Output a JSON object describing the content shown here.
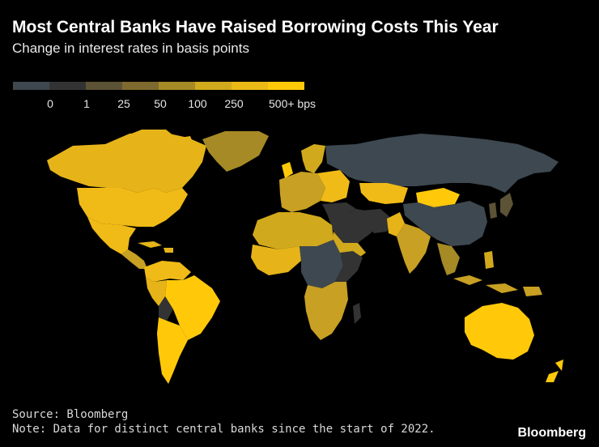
{
  "header": {
    "title": "Most Central Banks Have Raised Borrowing Costs This Year",
    "subtitle": "Change in interest rates in basis points"
  },
  "legend": {
    "swatch_colors": [
      "#3e4850",
      "#333333",
      "#5c5236",
      "#7e6a2e",
      "#a58a26",
      "#d1a91c",
      "#ecba16",
      "#ffc90a"
    ],
    "labels": [
      "0",
      "1",
      "25",
      "50",
      "100",
      "250",
      "500+ bps"
    ]
  },
  "colors": {
    "background": "#000000",
    "zero": "#3e4850",
    "max": "#ffc90a",
    "high": "#f0bb17",
    "mid": "#c8a023",
    "low": "#7e6a2e",
    "neutral": "#333333"
  },
  "footer": {
    "source": "Source: Bloomberg",
    "note": "Note: Data for distinct central banks since the start of 2022."
  },
  "brand": "Bloomberg"
}
